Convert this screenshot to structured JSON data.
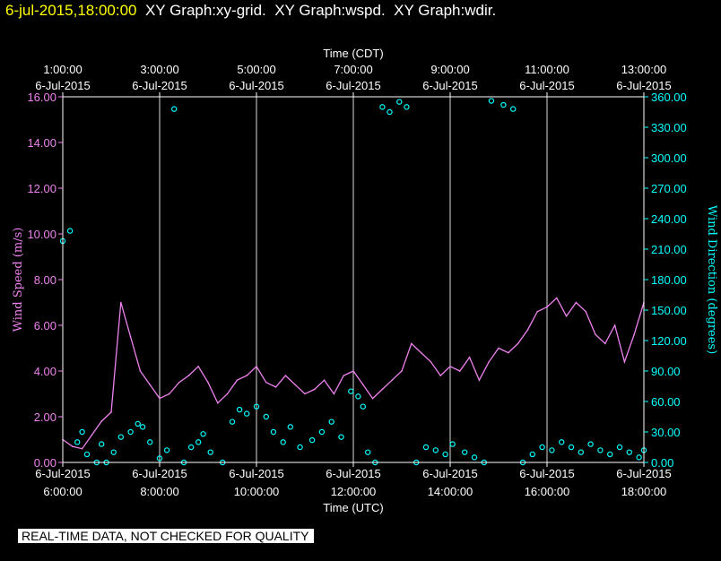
{
  "header": {
    "timestamp": "6-jul-2015,18:00:00",
    "graphs": [
      "XY Graph:xy-grid.",
      "XY Graph:wspd.",
      "XY Graph:wdir."
    ]
  },
  "note": "REAL-TIME DATA, NOT CHECKED FOR QUALITY",
  "colors": {
    "speed": "#ee82ee",
    "direction": "#00ffff",
    "axis": "#ffffff",
    "grid": "#ffffff",
    "header_timestamp": "#ffff00"
  },
  "chart_data": {
    "type": "line",
    "top_axis": {
      "title": "Time (CDT)",
      "ticks": [
        {
          "time": "1:00:00",
          "date": "6-Jul-2015"
        },
        {
          "time": "3:00:00",
          "date": "6-Jul-2015"
        },
        {
          "time": "5:00:00",
          "date": "6-Jul-2015"
        },
        {
          "time": "7:00:00",
          "date": "6-Jul-2015"
        },
        {
          "time": "9:00:00",
          "date": "6-Jul-2015"
        },
        {
          "time": "11:00:00",
          "date": "6-Jul-2015"
        },
        {
          "time": "13:00:00",
          "date": "6-Jul-2015"
        }
      ]
    },
    "bottom_axis": {
      "title": "Time (UTC)",
      "ticks": [
        {
          "date": "6-Jul-2015",
          "time": "6:00:00"
        },
        {
          "date": "6-Jul-2015",
          "time": "8:00:00"
        },
        {
          "date": "6-Jul-2015",
          "time": "10:00:00"
        },
        {
          "date": "6-Jul-2015",
          "time": "12:00:00"
        },
        {
          "date": "6-Jul-2015",
          "time": "14:00:00"
        },
        {
          "date": "6-Jul-2015",
          "time": "16:00:00"
        },
        {
          "date": "6-Jul-2015",
          "time": "18:00:00"
        }
      ],
      "xlim_hours_utc": [
        6,
        18
      ]
    },
    "left_axis": {
      "title": "Wind Speed (m/s)",
      "ticks": [
        "0.00",
        "2.00",
        "4.00",
        "6.00",
        "8.00",
        "10.00",
        "12.00",
        "14.00",
        "16.00"
      ],
      "ylim": [
        0,
        16
      ]
    },
    "right_axis": {
      "title": "Wind Direction (degrees)",
      "ticks": [
        "0.00",
        "30.00",
        "60.00",
        "90.00",
        "120.00",
        "150.00",
        "180.00",
        "210.00",
        "240.00",
        "270.00",
        "300.00",
        "330.00",
        "360.00"
      ],
      "ylim": [
        0,
        360
      ]
    },
    "grid": "vertical lines at each hour-pair tick",
    "series": [
      {
        "name": "Wind Speed (m/s)",
        "style": "line",
        "x_hours_utc": [
          6.0,
          6.2,
          6.4,
          6.6,
          6.8,
          7.0,
          7.2,
          7.4,
          7.6,
          7.8,
          8.0,
          8.2,
          8.4,
          8.6,
          8.8,
          9.0,
          9.2,
          9.4,
          9.6,
          9.8,
          10.0,
          10.2,
          10.4,
          10.6,
          10.8,
          11.0,
          11.2,
          11.4,
          11.6,
          11.8,
          12.0,
          12.2,
          12.4,
          12.6,
          12.8,
          13.0,
          13.2,
          13.4,
          13.6,
          13.8,
          14.0,
          14.2,
          14.4,
          14.6,
          14.8,
          15.0,
          15.2,
          15.4,
          15.6,
          15.8,
          16.0,
          16.2,
          16.4,
          16.6,
          16.8,
          17.0,
          17.2,
          17.4,
          17.6,
          17.8,
          18.0
        ],
        "values": [
          1.0,
          0.7,
          0.6,
          1.2,
          1.8,
          2.2,
          7.0,
          5.5,
          4.0,
          3.4,
          2.8,
          3.0,
          3.5,
          3.8,
          4.2,
          3.5,
          2.6,
          3.0,
          3.6,
          3.8,
          4.2,
          3.5,
          3.3,
          3.8,
          3.4,
          3.0,
          3.2,
          3.6,
          3.0,
          3.8,
          4.0,
          3.4,
          2.8,
          3.2,
          3.6,
          4.0,
          5.2,
          4.8,
          4.4,
          3.8,
          4.2,
          4.0,
          4.6,
          3.6,
          4.4,
          5.0,
          4.8,
          5.2,
          5.8,
          6.6,
          6.8,
          7.2,
          6.4,
          7.0,
          6.6,
          5.6,
          5.2,
          6.0,
          4.4,
          5.6,
          7.0
        ]
      },
      {
        "name": "Wind Direction (degrees)",
        "style": "markers",
        "x_hours_utc": [
          6.0,
          6.15,
          6.3,
          6.4,
          6.5,
          6.7,
          6.8,
          6.9,
          7.05,
          7.2,
          7.4,
          7.55,
          7.65,
          7.8,
          8.0,
          8.15,
          8.3,
          8.5,
          8.65,
          8.8,
          8.9,
          9.05,
          9.3,
          9.5,
          9.65,
          9.8,
          10.0,
          10.2,
          10.35,
          10.55,
          10.7,
          10.9,
          11.15,
          11.35,
          11.55,
          11.75,
          11.95,
          12.1,
          12.2,
          12.3,
          12.45,
          12.6,
          12.75,
          12.95,
          13.1,
          13.3,
          13.5,
          13.7,
          13.9,
          14.05,
          14.3,
          14.5,
          14.7,
          14.85,
          15.1,
          15.3,
          15.5,
          15.7,
          15.9,
          16.1,
          16.3,
          16.5,
          16.7,
          16.9,
          17.1,
          17.3,
          17.5,
          17.7,
          17.9,
          18.0
        ],
        "values": [
          218,
          228,
          20,
          30,
          8,
          0,
          18,
          0,
          10,
          25,
          30,
          38,
          35,
          20,
          4,
          12,
          348,
          0,
          15,
          20,
          28,
          10,
          0,
          40,
          52,
          48,
          55,
          45,
          30,
          20,
          35,
          15,
          22,
          30,
          40,
          25,
          70,
          65,
          55,
          10,
          0,
          350,
          345,
          355,
          350,
          0,
          15,
          12,
          8,
          18,
          10,
          5,
          0,
          356,
          352,
          348,
          0,
          8,
          15,
          12,
          20,
          15,
          10,
          18,
          12,
          8,
          15,
          10,
          5,
          12
        ]
      }
    ]
  }
}
